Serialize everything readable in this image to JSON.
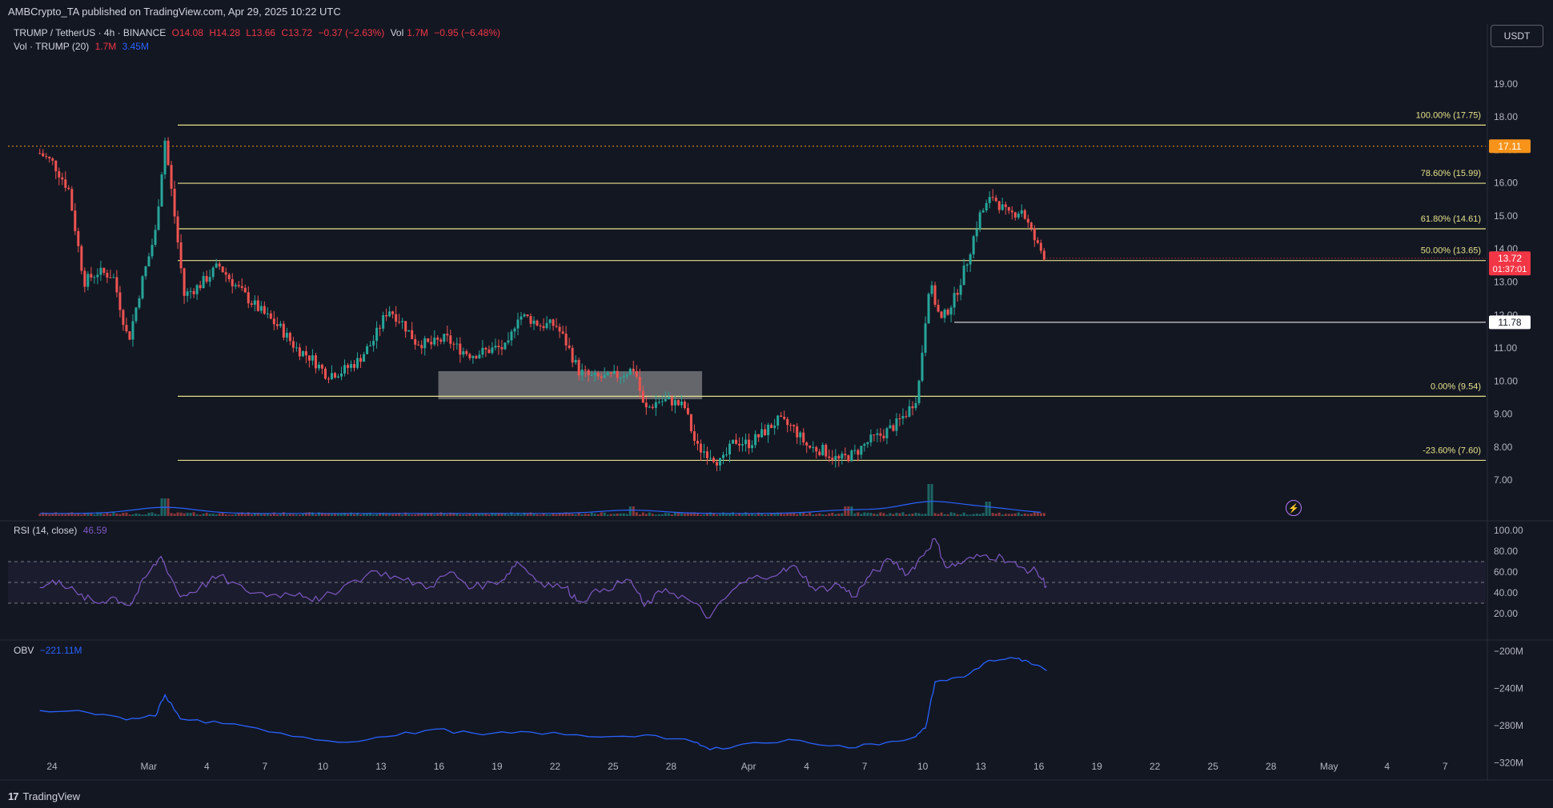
{
  "header": {
    "publisher": "AMBCrypto_TA published on TradingView.com, Apr 29, 2025 10:22 UTC",
    "symbol": "TRUMP / TetherUS · 4h · BINANCE",
    "open": "O14.08",
    "high": "H14.28",
    "low": "L13.66",
    "close": "C13.72",
    "change": "−0.37 (−2.63%)",
    "vol_label": "Vol",
    "vol_value": "1.7M",
    "vol_change": "−0.95 (−6.48%)",
    "vol_indicator": "Vol · TRUMP (20)",
    "vol_ind_v1": "1.7M",
    "vol_ind_v2": "3.45M",
    "currency": "USDT"
  },
  "footer": {
    "brand": "TradingView",
    "logo": "17"
  },
  "icons": {
    "bolt": "⚡"
  },
  "colors": {
    "bg": "#131722",
    "up": "#26a69a",
    "down": "#ef5350",
    "fib": "#e6e18a",
    "rsi": "#7e57c2",
    "obv": "#2962ff",
    "orange": "#f7931a"
  },
  "chart_data": {
    "type": "candlestick",
    "price_axis": {
      "ticks": [
        "19.00",
        "18.00",
        "17.00",
        "16.00",
        "15.00",
        "14.00",
        "13.00",
        "12.00",
        "11.00",
        "10.00",
        "9.00",
        "8.00",
        "7.00"
      ],
      "range": [
        6.4,
        19.6
      ]
    },
    "time_axis": {
      "labels": [
        "24",
        "Mar",
        "4",
        "7",
        "10",
        "13",
        "16",
        "19",
        "22",
        "25",
        "28",
        "Apr",
        "4",
        "7",
        "10",
        "13",
        "16",
        "19",
        "22",
        "25",
        "28",
        "May",
        "4",
        "7"
      ]
    },
    "fib_levels": [
      {
        "label": "100.00% (17.75)",
        "price": 17.75
      },
      {
        "label": "78.60% (15.99)",
        "price": 15.99
      },
      {
        "label": "61.80% (14.61)",
        "price": 14.61
      },
      {
        "label": "50.00% (13.65)",
        "price": 13.65
      },
      {
        "label": "0.00% (9.54)",
        "price": 9.54
      },
      {
        "label": "-23.60% (7.60)",
        "price": 7.6
      }
    ],
    "price_tags": [
      {
        "label": "17.11",
        "price": 17.11,
        "color": "#f7931a"
      },
      {
        "label": "11.78",
        "price": 11.78,
        "color": "#ffffff"
      },
      {
        "label": "13.72",
        "sub": "01:37:01",
        "price": 13.72,
        "color": "#f23645"
      }
    ],
    "zone": {
      "x_start": 15.2,
      "x_end": 28.9,
      "low": 9.45,
      "high": 10.3
    },
    "price_path": [
      [
        -5.5,
        16.9
      ],
      [
        -4.8,
        16.6
      ],
      [
        -4.0,
        15.8
      ],
      [
        -3.2,
        13.0
      ],
      [
        -2.5,
        13.3
      ],
      [
        -1.7,
        13.2
      ],
      [
        -0.9,
        11.2
      ],
      [
        -0.2,
        13.0
      ],
      [
        0.5,
        14.5
      ],
      [
        1.0,
        17.3
      ],
      [
        1.5,
        15.0
      ],
      [
        2.0,
        12.6
      ],
      [
        2.8,
        12.9
      ],
      [
        3.8,
        13.5
      ],
      [
        4.5,
        13.0
      ],
      [
        5.3,
        12.5
      ],
      [
        6.2,
        12.0
      ],
      [
        7.0,
        11.6
      ],
      [
        7.8,
        11.0
      ],
      [
        8.6,
        10.7
      ],
      [
        9.4,
        10.2
      ],
      [
        10.2,
        10.3
      ],
      [
        11.0,
        10.6
      ],
      [
        11.8,
        11.2
      ],
      [
        12.6,
        12.2
      ],
      [
        13.3,
        11.8
      ],
      [
        14.0,
        11.2
      ],
      [
        14.8,
        11.1
      ],
      [
        15.6,
        11.3
      ],
      [
        16.2,
        11.0
      ],
      [
        16.9,
        10.8
      ],
      [
        17.6,
        10.9
      ],
      [
        18.2,
        11.0
      ],
      [
        18.8,
        11.0
      ],
      [
        19.3,
        12.0
      ],
      [
        19.9,
        11.9
      ],
      [
        20.5,
        11.7
      ],
      [
        21.3,
        11.7
      ],
      [
        21.8,
        11.2
      ],
      [
        22.5,
        10.3
      ],
      [
        23.2,
        10.1
      ],
      [
        24.0,
        10.1
      ],
      [
        24.7,
        10.2
      ],
      [
        25.4,
        10.4
      ],
      [
        25.9,
        9.1
      ],
      [
        26.6,
        9.4
      ],
      [
        27.3,
        9.4
      ],
      [
        28.0,
        9.2
      ],
      [
        28.6,
        8.0
      ],
      [
        29.3,
        7.8
      ],
      [
        29.9,
        7.5
      ],
      [
        30.6,
        8.2
      ],
      [
        31.3,
        8.1
      ],
      [
        32.0,
        8.4
      ],
      [
        32.8,
        8.8
      ],
      [
        33.6,
        8.6
      ],
      [
        34.4,
        8.0
      ],
      [
        35.2,
        7.9
      ],
      [
        36.0,
        7.6
      ],
      [
        36.8,
        7.8
      ],
      [
        37.6,
        8.2
      ],
      [
        38.3,
        8.4
      ],
      [
        39.0,
        8.7
      ],
      [
        39.6,
        9.1
      ],
      [
        40.1,
        9.6
      ],
      [
        40.7,
        13.0
      ],
      [
        41.3,
        11.8
      ],
      [
        42.0,
        12.5
      ],
      [
        42.6,
        13.5
      ],
      [
        43.3,
        15.0
      ],
      [
        44.0,
        15.6
      ],
      [
        44.8,
        15.0
      ],
      [
        45.5,
        15.2
      ],
      [
        46.3,
        14.1
      ],
      [
        46.8,
        13.72
      ]
    ],
    "volume_spikes": [
      [
        1.0,
        0.55
      ],
      [
        40.7,
        1.0
      ],
      [
        43.8,
        0.45
      ],
      [
        25.2,
        0.3
      ],
      [
        36.5,
        0.3
      ]
    ],
    "rsi": {
      "label": "RSI (14, close)",
      "value": "46.59",
      "axis": [
        "100.00",
        "80.00",
        "60.00",
        "40.00",
        "20.00"
      ],
      "bands": [
        70,
        50,
        30
      ],
      "points": [
        [
          -5.5,
          45
        ],
        [
          -4.5,
          52
        ],
        [
          -3.5,
          38
        ],
        [
          -2.5,
          30
        ],
        [
          -1.7,
          36
        ],
        [
          -0.8,
          28
        ],
        [
          0.0,
          55
        ],
        [
          0.8,
          75
        ],
        [
          1.8,
          36
        ],
        [
          2.8,
          45
        ],
        [
          3.8,
          56
        ],
        [
          5.2,
          42
        ],
        [
          6.5,
          38
        ],
        [
          8.0,
          40
        ],
        [
          9.0,
          32
        ],
        [
          10.3,
          47
        ],
        [
          12.0,
          61
        ],
        [
          13.4,
          52
        ],
        [
          14.8,
          46
        ],
        [
          15.8,
          60
        ],
        [
          17.0,
          45
        ],
        [
          18.5,
          52
        ],
        [
          19.3,
          70
        ],
        [
          20.5,
          50
        ],
        [
          21.8,
          45
        ],
        [
          22.5,
          32
        ],
        [
          23.8,
          44
        ],
        [
          25.2,
          52
        ],
        [
          25.9,
          27
        ],
        [
          27.0,
          44
        ],
        [
          28.3,
          32
        ],
        [
          29.3,
          16
        ],
        [
          30.5,
          43
        ],
        [
          31.5,
          54
        ],
        [
          33.0,
          60
        ],
        [
          33.8,
          65
        ],
        [
          34.8,
          42
        ],
        [
          36.0,
          48
        ],
        [
          36.8,
          36
        ],
        [
          37.6,
          56
        ],
        [
          38.7,
          72
        ],
        [
          39.6,
          58
        ],
        [
          40.3,
          75
        ],
        [
          41.0,
          92
        ],
        [
          41.6,
          64
        ],
        [
          42.5,
          70
        ],
        [
          43.5,
          76
        ],
        [
          44.5,
          74
        ],
        [
          45.3,
          65
        ],
        [
          46.3,
          60
        ],
        [
          46.8,
          46.59
        ]
      ]
    },
    "obv": {
      "label": "OBV",
      "value": "−221.11M",
      "axis": [
        "−200M",
        "−240M",
        "−280M",
        "−320M"
      ],
      "points": [
        [
          -5.5,
          -264
        ],
        [
          -3.0,
          -266
        ],
        [
          -1.0,
          -274
        ],
        [
          0.5,
          -270
        ],
        [
          1.0,
          -247
        ],
        [
          1.8,
          -273
        ],
        [
          4.0,
          -278
        ],
        [
          7.0,
          -288
        ],
        [
          10.0,
          -298
        ],
        [
          12.5,
          -292
        ],
        [
          15.0,
          -284
        ],
        [
          17.5,
          -290
        ],
        [
          20.0,
          -287
        ],
        [
          23.0,
          -292
        ],
        [
          26.0,
          -290
        ],
        [
          28.5,
          -298
        ],
        [
          29.3,
          -306
        ],
        [
          31.0,
          -300
        ],
        [
          34.0,
          -296
        ],
        [
          36.5,
          -304
        ],
        [
          38.5,
          -298
        ],
        [
          40.0,
          -292
        ],
        [
          40.5,
          -283
        ],
        [
          41.0,
          -233
        ],
        [
          42.5,
          -228
        ],
        [
          43.8,
          -210
        ],
        [
          45.2,
          -208
        ],
        [
          46.0,
          -214
        ],
        [
          46.8,
          -221.11
        ]
      ]
    }
  }
}
